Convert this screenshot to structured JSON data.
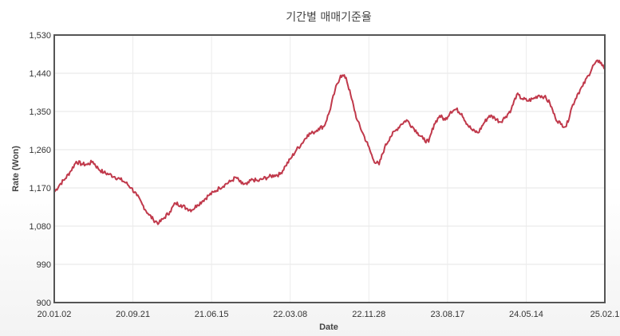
{
  "chart_data": {
    "type": "line",
    "title": "기간별 매매기준율",
    "xlabel": "Date",
    "ylabel": "Rate (Won)",
    "ylim": [
      900,
      1530
    ],
    "y_ticks": [
      "900",
      "990",
      "1,080",
      "1,170",
      "1,260",
      "1,350",
      "1,440",
      "1,530"
    ],
    "x_tick_labels": [
      "20.01.02",
      "20.09.21",
      "21.06.15",
      "22.03.08",
      "22.11.28",
      "23.08.17",
      "24.05.14",
      "25.02.1"
    ],
    "grid": true,
    "series_color": "#c0394b",
    "series": [
      {
        "values": [
          1160,
          1178,
          1192,
          1210,
          1232,
          1226,
          1225,
          1232,
          1215,
          1206,
          1202,
          1196,
          1190,
          1182,
          1170,
          1152,
          1131,
          1110,
          1095,
          1087,
          1100,
          1114,
          1134,
          1130,
          1122,
          1118,
          1130,
          1140,
          1152,
          1160,
          1170,
          1178,
          1185,
          1195,
          1180,
          1178,
          1190,
          1186,
          1192,
          1196,
          1200,
          1202,
          1222,
          1240,
          1260,
          1275,
          1295,
          1300,
          1310,
          1315,
          1350,
          1400,
          1435,
          1430,
          1380,
          1330,
          1300,
          1270,
          1235,
          1225,
          1265,
          1290,
          1305,
          1320,
          1330,
          1315,
          1300,
          1285,
          1278,
          1320,
          1340,
          1330,
          1350,
          1355,
          1345,
          1320,
          1305,
          1300,
          1322,
          1340,
          1335,
          1325,
          1338,
          1355,
          1390,
          1380,
          1375,
          1380,
          1388,
          1385,
          1370,
          1335,
          1320,
          1315,
          1360,
          1390,
          1410,
          1435,
          1460,
          1470,
          1450
        ]
      }
    ]
  }
}
